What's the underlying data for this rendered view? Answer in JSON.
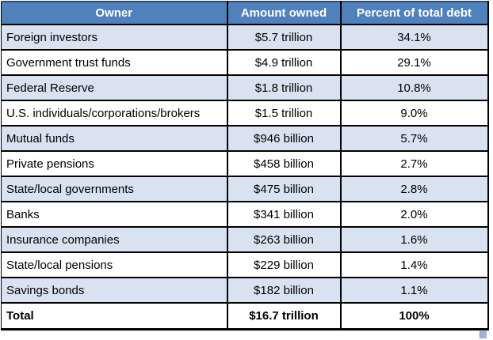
{
  "header": [
    "Owner",
    "Amount owned",
    "Percent of total debt"
  ],
  "rows": [
    {
      "owner": "Foreign investors",
      "amount": "$5.7 trillion",
      "percent": "34.1%"
    },
    {
      "owner": "Government trust funds",
      "amount": "$4.9 trillion",
      "percent": "29.1%"
    },
    {
      "owner": "Federal Reserve",
      "amount": "$1.8 trillion",
      "percent": "10.8%"
    },
    {
      "owner": "U.S. individuals/corporations/brokers",
      "amount": "$1.5 trillion",
      "percent": "9.0%"
    },
    {
      "owner": "Mutual funds",
      "amount": "$946 billion",
      "percent": "5.7%"
    },
    {
      "owner": "Private pensions",
      "amount": "$458 billion",
      "percent": "2.7%"
    },
    {
      "owner": "State/local governments",
      "amount": "$475 billion",
      "percent": "2.8%"
    },
    {
      "owner": "Banks",
      "amount": "$341 billion",
      "percent": "2.0%"
    },
    {
      "owner": "Insurance companies",
      "amount": "$263 billion",
      "percent": "1.6%"
    },
    {
      "owner": "State/local pensions",
      "amount": "$229 billion",
      "percent": "1.4%"
    },
    {
      "owner": "Savings bonds",
      "amount": "$182 billion",
      "percent": "1.1%"
    }
  ],
  "total_row": {
    "owner": "Total",
    "amount": "$16.7 trillion",
    "percent": "100%"
  },
  "colors": {
    "header_bg": "#4f81bd",
    "header_text": "#ffffff",
    "band_row_bg": "#d9e2f1",
    "plain_row_bg": "#ffffff",
    "grid_border": "#000000",
    "header_top_border": "#2e4d76",
    "resize_handle": "#9fb5d8"
  }
}
